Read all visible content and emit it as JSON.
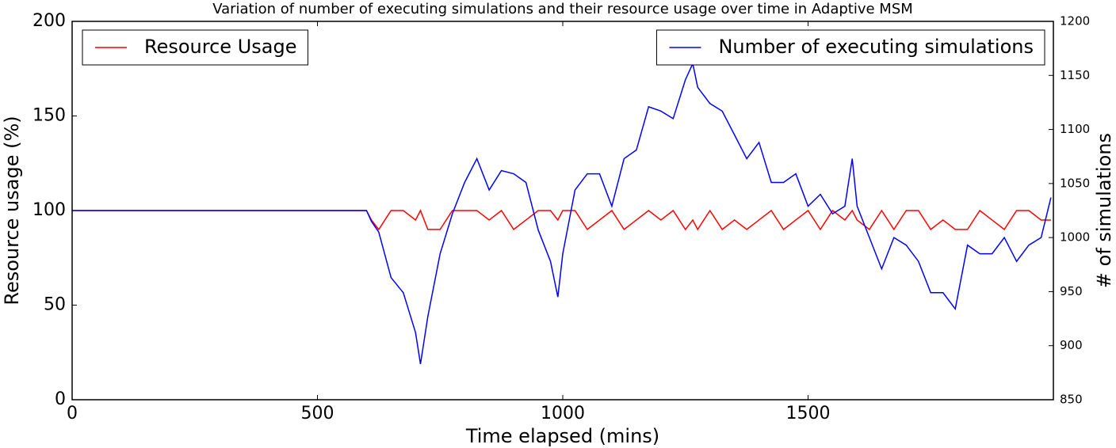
{
  "chart_data": {
    "type": "line",
    "title": "Variation of number of executing simulations and their resource usage over time in Adaptive MSM",
    "xlabel": "Time elapsed (mins)",
    "ylabel": "Resource usage (%)",
    "y2label": "# of simulations",
    "x": [
      0,
      600,
      610,
      625,
      650,
      675,
      700,
      710,
      725,
      750,
      775,
      800,
      825,
      850,
      875,
      900,
      925,
      950,
      975,
      990,
      1000,
      1025,
      1050,
      1075,
      1100,
      1125,
      1150,
      1175,
      1200,
      1225,
      1250,
      1265,
      1275,
      1300,
      1325,
      1350,
      1375,
      1400,
      1425,
      1450,
      1475,
      1500,
      1525,
      1550,
      1575,
      1590,
      1600,
      1625,
      1650,
      1675,
      1700,
      1725,
      1750,
      1775,
      1800,
      1825,
      1850,
      1875,
      1900,
      1925,
      1950,
      1975,
      1995
    ],
    "series": [
      {
        "name": "Resource Usage",
        "color": "#ff0000",
        "legend": "upper left",
        "values": [
          100,
          100,
          95,
          90,
          100,
          100,
          95,
          100,
          90,
          90,
          100,
          100,
          100,
          95,
          100,
          90,
          95,
          100,
          100,
          95,
          100,
          100,
          90,
          95,
          100,
          90,
          95,
          100,
          95,
          100,
          90,
          95,
          90,
          100,
          90,
          95,
          90,
          95,
          100,
          90,
          95,
          100,
          90,
          100,
          95,
          100,
          95,
          90,
          100,
          90,
          100,
          100,
          90,
          95,
          90,
          90,
          100,
          95,
          90,
          100,
          100,
          95,
          95
        ]
      },
      {
        "name": "Number of executing simulations",
        "color": "#0000ff",
        "axis": "y2",
        "legend": "upper right",
        "values": [
          1025,
          1025,
          1015,
          1005,
          963,
          949,
          912,
          883,
          927,
          985,
          1022,
          1051,
          1073,
          1044,
          1062,
          1059,
          1051,
          1007,
          978,
          945,
          985,
          1044,
          1059,
          1059,
          1029,
          1073,
          1081,
          1121,
          1117,
          1110,
          1146,
          1161,
          1139,
          1124,
          1117,
          1095,
          1073,
          1088,
          1051,
          1051,
          1059,
          1029,
          1040,
          1022,
          1029,
          1073,
          1029,
          1000,
          971,
          1000,
          993,
          978,
          949,
          949,
          934,
          993,
          985,
          985,
          1000,
          978,
          993,
          1000,
          1037
        ]
      }
    ],
    "xlim": [
      0,
      2000
    ],
    "xticks": [
      0,
      500,
      1000,
      1500
    ],
    "ylim": [
      0,
      200
    ],
    "yticks": [
      0,
      50,
      100,
      150,
      200
    ],
    "y2lim": [
      850,
      1200
    ],
    "y2ticks": [
      850,
      900,
      950,
      1000,
      1050,
      1100,
      1150,
      1200
    ],
    "grid": false
  }
}
